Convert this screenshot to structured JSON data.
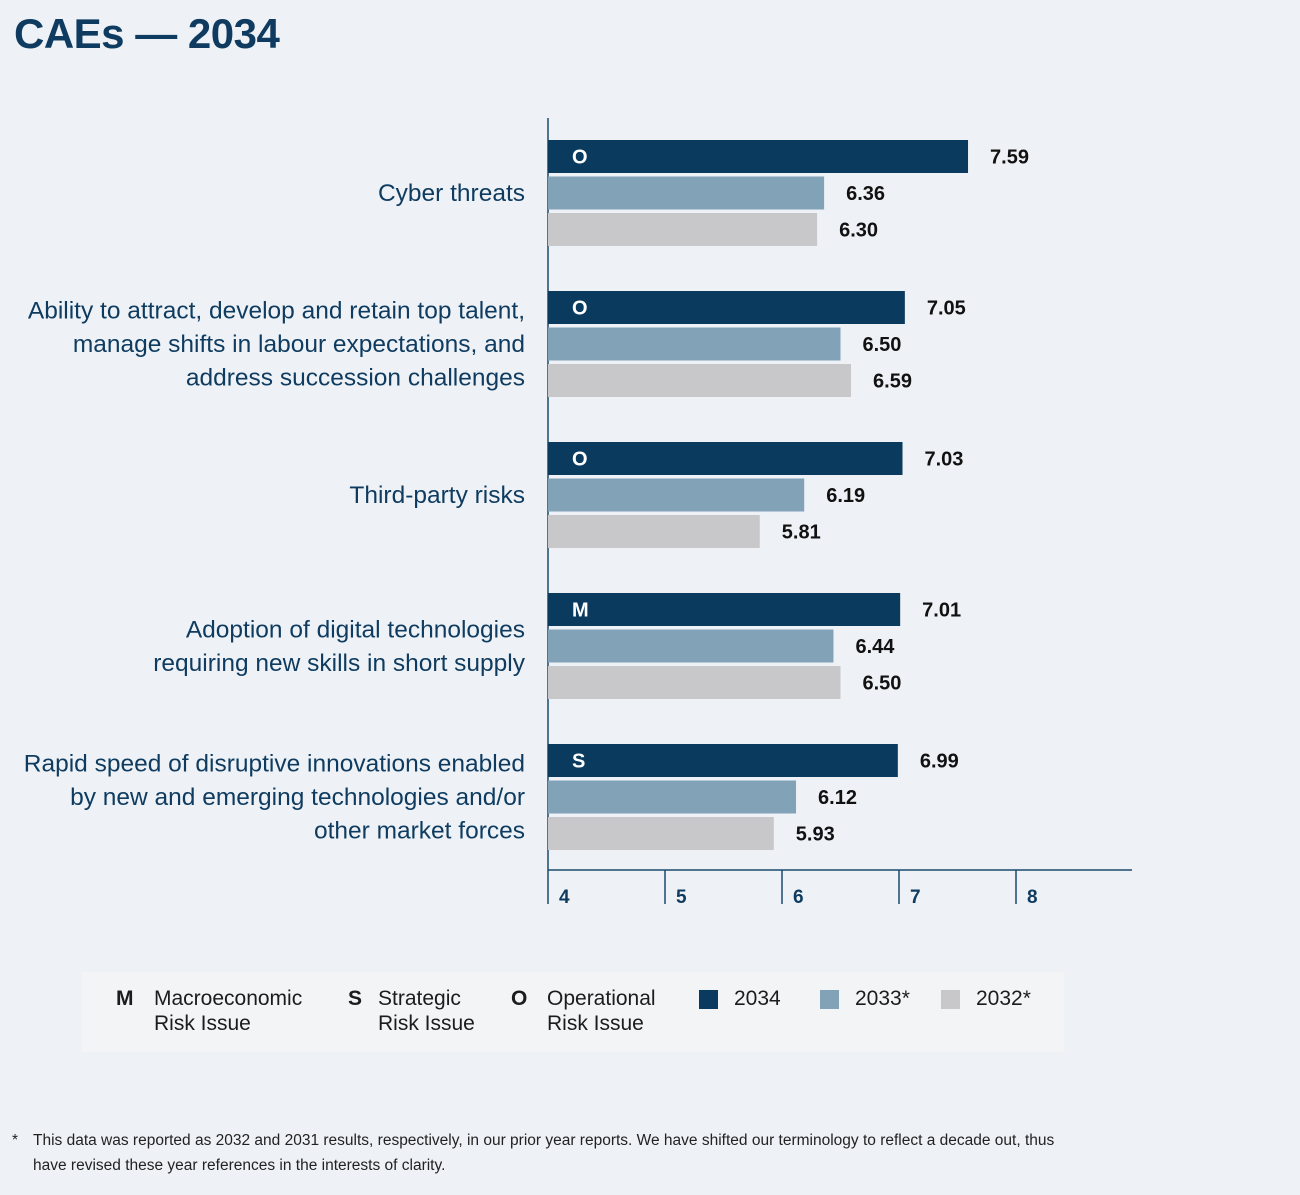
{
  "title": "CAEs — 2034",
  "colors": {
    "y2034": "#0b3a5f",
    "y2033": "#82a2b8",
    "y2032": "#c8c8ca",
    "label": "#0e3b5f",
    "axis": "#1d4a6c",
    "value_text": "#111111",
    "risk_letter": "#ffffff"
  },
  "chart_data": {
    "type": "bar",
    "orientation": "horizontal",
    "title": "CAEs — 2034",
    "categories": [
      "Cyber threats",
      "Ability to attract, develop and retain top talent, manage shifts in labour expectations, and address succession challenges",
      "Third-party risks",
      "Adoption of digital technologies requiring new skills in short supply",
      "Rapid speed of disruptive innovations enabled by new and emerging technologies and/or other market forces"
    ],
    "category_label_lines": [
      [
        "Cyber threats"
      ],
      [
        "Ability to attract, develop and retain top talent,",
        "manage shifts in labour expectations, and",
        "address succession challenges"
      ],
      [
        "Third-party risks"
      ],
      [
        "Adoption of digital technologies",
        "requiring new skills in short supply"
      ],
      [
        "Rapid speed of disruptive innovations enabled",
        "by new and emerging technologies and/or",
        "other market forces"
      ]
    ],
    "risk_types": [
      "O",
      "O",
      "O",
      "M",
      "S"
    ],
    "series": [
      {
        "name": "2034",
        "values": [
          7.59,
          7.05,
          7.03,
          7.01,
          6.99
        ],
        "labels": [
          "7.59",
          "7.05",
          "7.03",
          "7.01",
          "6.99"
        ]
      },
      {
        "name": "2033*",
        "values": [
          6.36,
          6.5,
          6.19,
          6.44,
          6.12
        ],
        "labels": [
          "6.36",
          "6.50",
          "6.19",
          "6.44",
          "6.12"
        ]
      },
      {
        "name": "2032*",
        "values": [
          6.3,
          6.59,
          5.81,
          6.5,
          5.93
        ],
        "labels": [
          "6.30",
          "6.59",
          "5.81",
          "6.50",
          "5.93"
        ]
      }
    ],
    "xlim": [
      4,
      9
    ],
    "xticks": [
      "4",
      "5",
      "6",
      "7",
      "8"
    ],
    "xlabel": "",
    "ylabel": ""
  },
  "legend": {
    "risk_types": [
      {
        "letter": "M",
        "line1": "Macroeconomic",
        "line2": "Risk Issue"
      },
      {
        "letter": "S",
        "line1": "Strategic",
        "line2": "Risk Issue"
      },
      {
        "letter": "O",
        "line1": "Operational",
        "line2": "Risk Issue"
      }
    ],
    "years": [
      {
        "label": "2034"
      },
      {
        "label": "2033*"
      },
      {
        "label": "2032*"
      }
    ]
  },
  "footnote": {
    "mark": "*",
    "text": "This data was reported as 2032 and 2031 results, respectively, in our prior year reports. We have shifted our terminology to reflect a decade out, thus have revised these year references in the interests of clarity."
  }
}
